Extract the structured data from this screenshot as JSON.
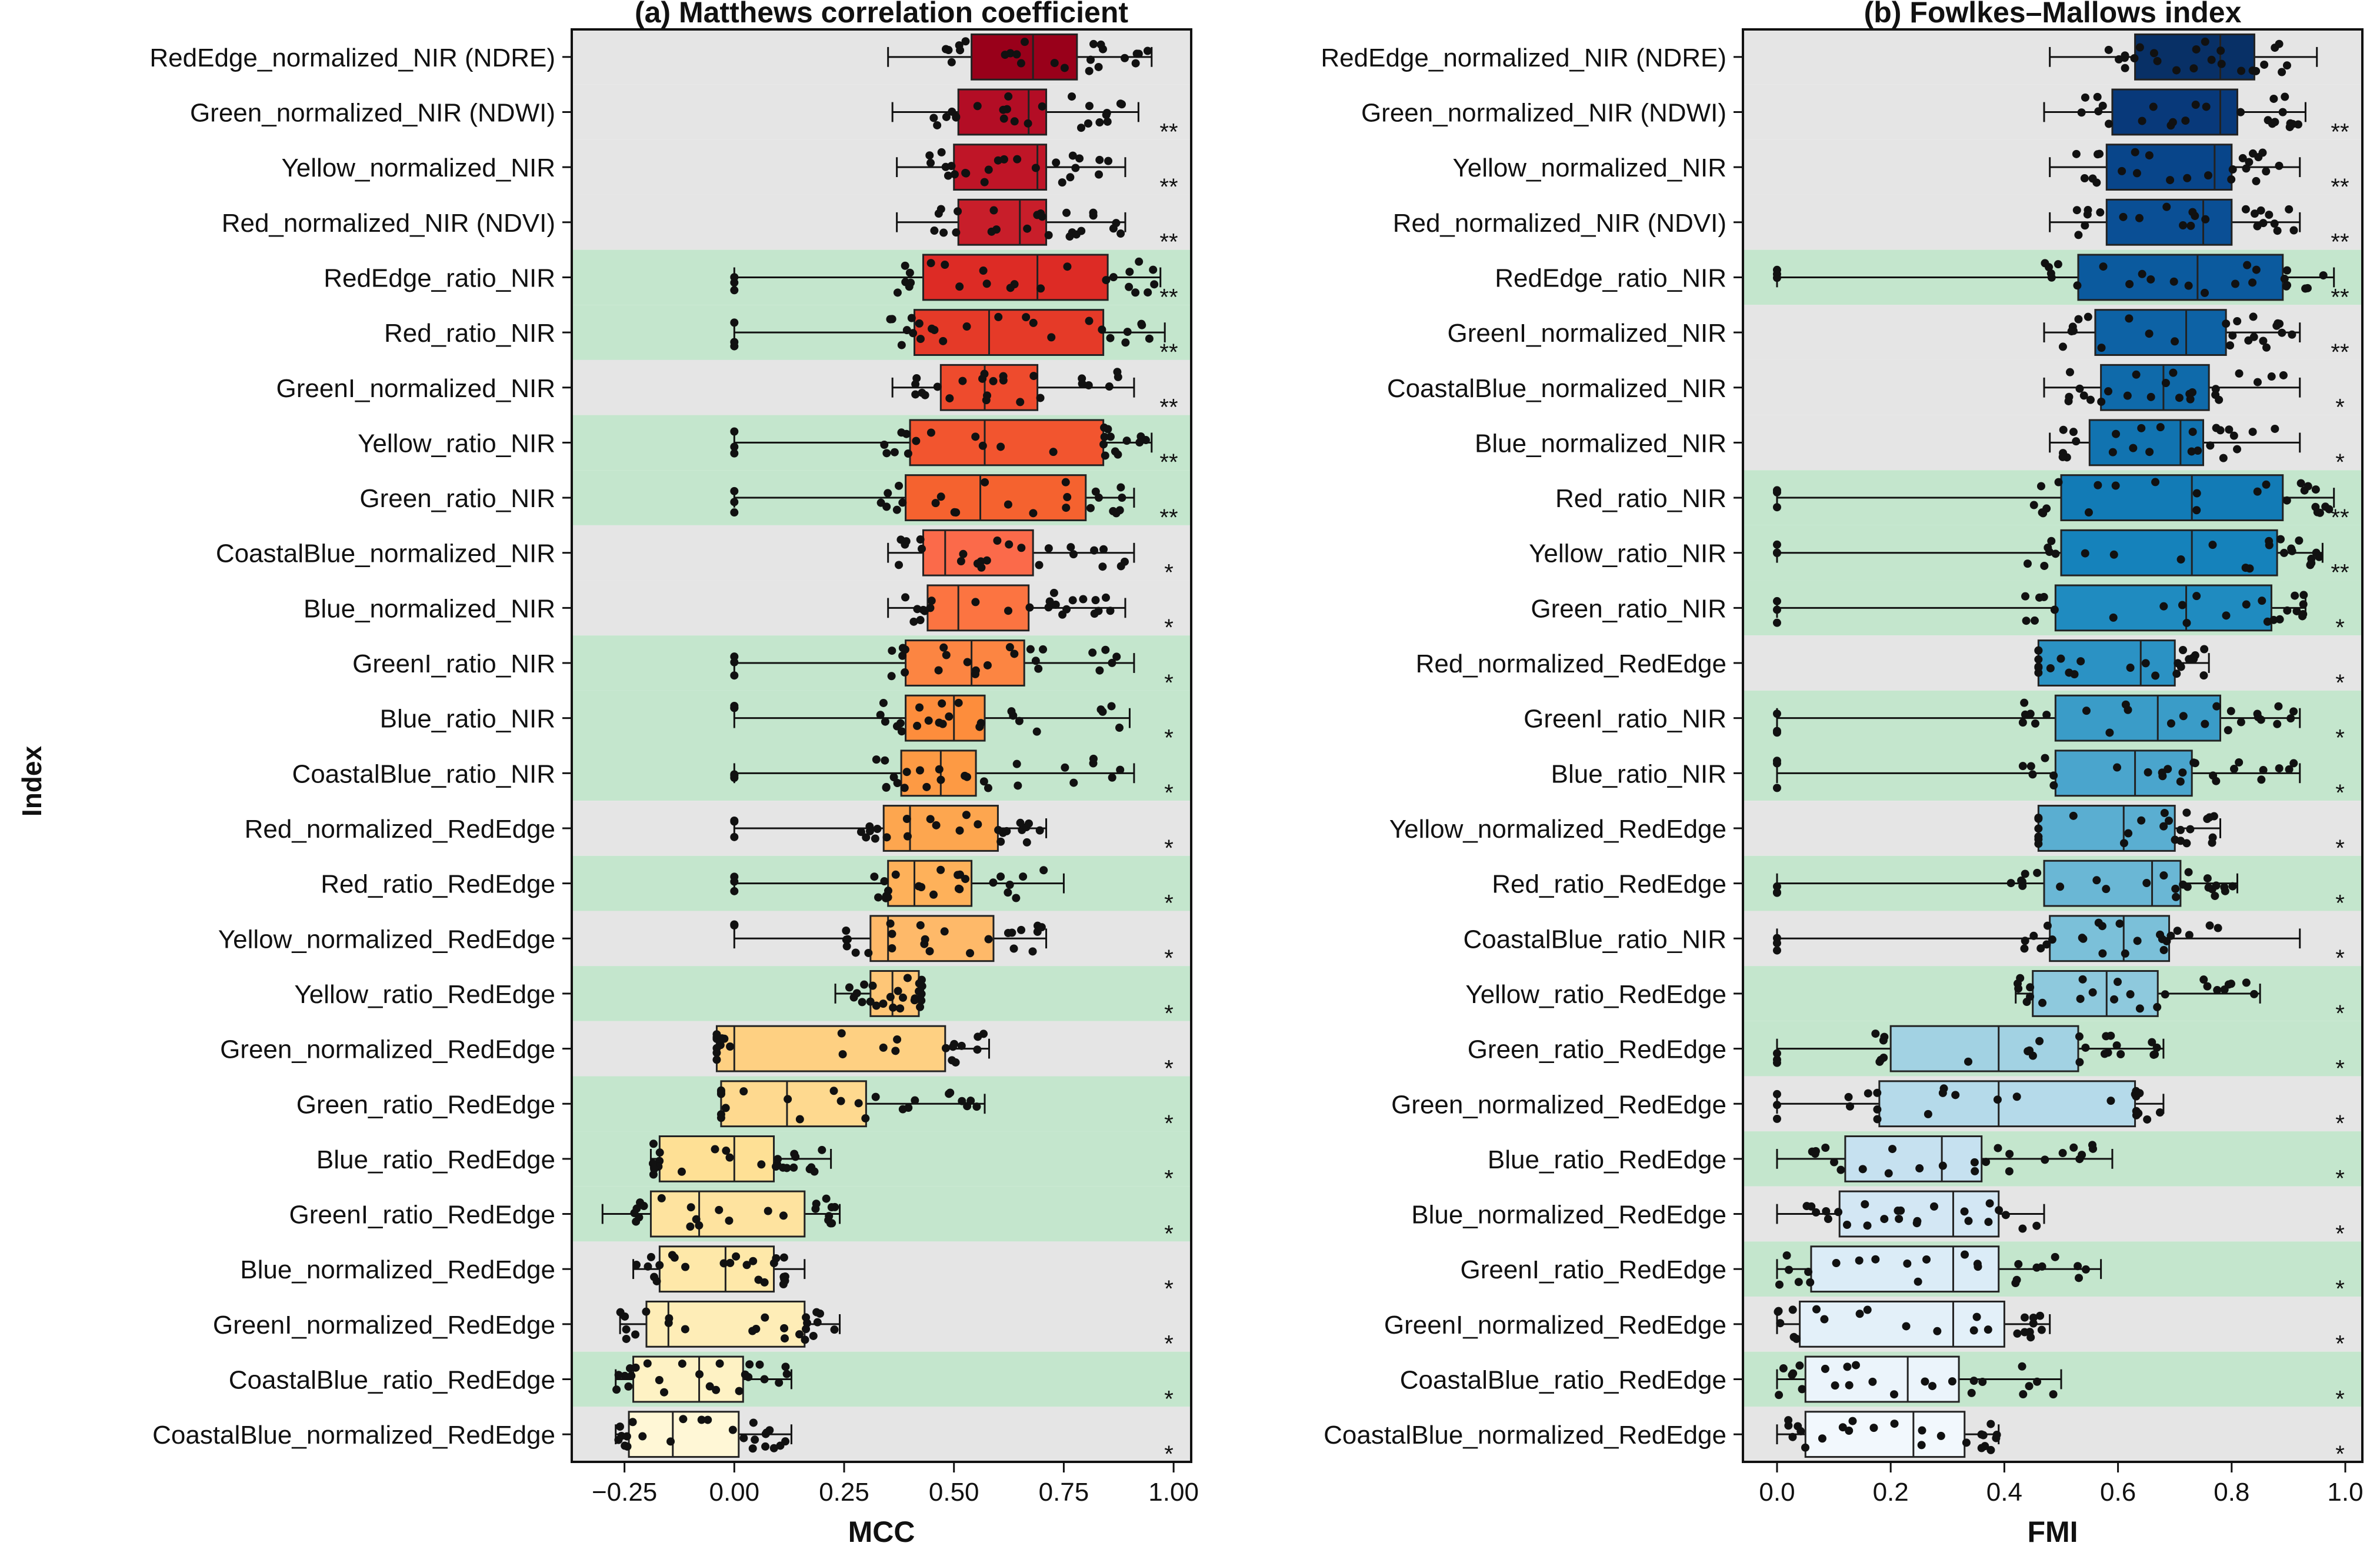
{
  "chart_data": [
    {
      "type": "boxplot",
      "panel": "a",
      "title": "(a) Matthews correlation coefficient",
      "xlabel": "MCC",
      "ylabel": "Index",
      "xlim": [
        -0.37,
        1.04
      ],
      "xticks": [
        -0.25,
        0.0,
        0.25,
        0.5,
        0.75,
        1.0
      ],
      "xtick_labels": [
        "−0.25",
        "0.00",
        "0.25",
        "0.50",
        "0.75",
        "1.00"
      ],
      "colors": [
        "#99001a",
        "#b30d25",
        "#bf1527",
        "#c81e2a",
        "#dd2b25",
        "#e53a28",
        "#ee4b2d",
        "#f2552f",
        "#f5622f",
        "#fb6a4a",
        "#fc7441",
        "#fc8542",
        "#fd8d3c",
        "#fd9a44",
        "#fda64f",
        "#feb15a",
        "#feb969",
        "#fec677",
        "#fed082",
        "#fed98f",
        "#fee095",
        "#fee39f",
        "#fee8a9",
        "#feedb7",
        "#fef2c4",
        "#fff7d6"
      ],
      "rows": [
        {
          "label": "RedEdge_normalized_NIR (NDRE)",
          "shade": "gray",
          "sig": "",
          "min": 0.35,
          "q1": 0.54,
          "median": 0.68,
          "q3": 0.78,
          "max": 0.95
        },
        {
          "label": "Green_normalized_NIR (NDWI)",
          "shade": "gray",
          "sig": "**",
          "min": 0.36,
          "q1": 0.51,
          "median": 0.67,
          "q3": 0.71,
          "max": 0.92
        },
        {
          "label": "Yellow_normalized_NIR",
          "shade": "gray",
          "sig": "**",
          "min": 0.37,
          "q1": 0.5,
          "median": 0.69,
          "q3": 0.71,
          "max": 0.89
        },
        {
          "label": "Red_normalized_NIR (NDVI)",
          "shade": "gray",
          "sig": "**",
          "min": 0.37,
          "q1": 0.51,
          "median": 0.65,
          "q3": 0.71,
          "max": 0.89
        },
        {
          "label": "RedEdge_ratio_NIR",
          "shade": "green",
          "sig": "**",
          "min": 0.0,
          "q1": 0.43,
          "median": 0.69,
          "q3": 0.85,
          "max": 0.97
        },
        {
          "label": "Red_ratio_NIR",
          "shade": "green",
          "sig": "**",
          "min": 0.0,
          "q1": 0.41,
          "median": 0.58,
          "q3": 0.84,
          "max": 0.98
        },
        {
          "label": "GreenI_normalized_NIR",
          "shade": "gray",
          "sig": "**",
          "min": 0.36,
          "q1": 0.47,
          "median": 0.57,
          "q3": 0.69,
          "max": 0.91
        },
        {
          "label": "Yellow_ratio_NIR",
          "shade": "green",
          "sig": "**",
          "min": 0.0,
          "q1": 0.4,
          "median": 0.57,
          "q3": 0.84,
          "max": 0.95
        },
        {
          "label": "Green_ratio_NIR",
          "shade": "green",
          "sig": "**",
          "min": 0.0,
          "q1": 0.39,
          "median": 0.56,
          "q3": 0.8,
          "max": 0.91
        },
        {
          "label": "CoastalBlue_normalized_NIR",
          "shade": "gray",
          "sig": "*",
          "min": 0.35,
          "q1": 0.43,
          "median": 0.48,
          "q3": 0.68,
          "max": 0.91
        },
        {
          "label": "Blue_normalized_NIR",
          "shade": "gray",
          "sig": "*",
          "min": 0.35,
          "q1": 0.44,
          "median": 0.51,
          "q3": 0.67,
          "max": 0.89
        },
        {
          "label": "GreenI_ratio_NIR",
          "shade": "green",
          "sig": "*",
          "min": 0.0,
          "q1": 0.39,
          "median": 0.54,
          "q3": 0.66,
          "max": 0.91
        },
        {
          "label": "Blue_ratio_NIR",
          "shade": "green",
          "sig": "*",
          "min": 0.0,
          "q1": 0.39,
          "median": 0.5,
          "q3": 0.57,
          "max": 0.9
        },
        {
          "label": "CoastalBlue_ratio_NIR",
          "shade": "green",
          "sig": "*",
          "min": 0.0,
          "q1": 0.38,
          "median": 0.47,
          "q3": 0.55,
          "max": 0.91
        },
        {
          "label": "Red_normalized_RedEdge",
          "shade": "gray",
          "sig": "*",
          "min": 0.0,
          "q1": 0.34,
          "median": 0.4,
          "q3": 0.6,
          "max": 0.71
        },
        {
          "label": "Red_ratio_RedEdge",
          "shade": "green",
          "sig": "*",
          "min": 0.0,
          "q1": 0.35,
          "median": 0.41,
          "q3": 0.54,
          "max": 0.75
        },
        {
          "label": "Yellow_normalized_RedEdge",
          "shade": "gray",
          "sig": "*",
          "min": 0.0,
          "q1": 0.31,
          "median": 0.35,
          "q3": 0.59,
          "max": 0.71
        },
        {
          "label": "Yellow_ratio_RedEdge",
          "shade": "green",
          "sig": "*",
          "min": 0.23,
          "q1": 0.31,
          "median": 0.36,
          "q3": 0.42,
          "max": 0.43
        },
        {
          "label": "Green_normalized_RedEdge",
          "shade": "gray",
          "sig": "*",
          "min": -0.04,
          "q1": -0.04,
          "median": 0.0,
          "q3": 0.48,
          "max": 0.58
        },
        {
          "label": "Green_ratio_RedEdge",
          "shade": "green",
          "sig": "*",
          "min": -0.03,
          "q1": -0.03,
          "median": 0.12,
          "q3": 0.3,
          "max": 0.57
        },
        {
          "label": "Blue_ratio_RedEdge",
          "shade": "green",
          "sig": "*",
          "min": -0.19,
          "q1": -0.17,
          "median": 0.0,
          "q3": 0.09,
          "max": 0.22
        },
        {
          "label": "GreenI_ratio_RedEdge",
          "shade": "green",
          "sig": "*",
          "min": -0.3,
          "q1": -0.19,
          "median": -0.08,
          "q3": 0.16,
          "max": 0.24
        },
        {
          "label": "Blue_normalized_RedEdge",
          "shade": "gray",
          "sig": "*",
          "min": -0.23,
          "q1": -0.17,
          "median": -0.02,
          "q3": 0.09,
          "max": 0.16
        },
        {
          "label": "GreenI_normalized_RedEdge",
          "shade": "gray",
          "sig": "*",
          "min": -0.26,
          "q1": -0.2,
          "median": -0.15,
          "q3": 0.16,
          "max": 0.24
        },
        {
          "label": "CoastalBlue_ratio_RedEdge",
          "shade": "green",
          "sig": "*",
          "min": -0.27,
          "q1": -0.23,
          "median": -0.08,
          "q3": 0.02,
          "max": 0.13
        },
        {
          "label": "CoastalBlue_normalized_RedEdge",
          "shade": "gray",
          "sig": "*",
          "min": -0.27,
          "q1": -0.24,
          "median": -0.14,
          "q3": 0.01,
          "max": 0.13
        }
      ]
    },
    {
      "type": "boxplot",
      "panel": "b",
      "title": "(b) Fowlkes–Mallows index",
      "xlabel": "FMI",
      "ylabel": "",
      "xlim": [
        -0.06,
        1.03
      ],
      "xticks": [
        0.0,
        0.2,
        0.4,
        0.6,
        0.8,
        1.0
      ],
      "xtick_labels": [
        "0.0",
        "0.2",
        "0.4",
        "0.6",
        "0.8",
        "1.0"
      ],
      "colors": [
        "#083066",
        "#08397a",
        "#08458a",
        "#0a4f95",
        "#0b5a9e",
        "#0d62a5",
        "#0f6aaa",
        "#1173b0",
        "#127bb6",
        "#1582bb",
        "#1f8bc0",
        "#2b92c4",
        "#3a9cc8",
        "#4aa5cd",
        "#5aaed1",
        "#6ab7d5",
        "#7bc0d9",
        "#8ec9dd",
        "#a2d2e3",
        "#b5daea",
        "#c6e1f0",
        "#d3e7f4",
        "#dbecf7",
        "#e3f0f9",
        "#ebf4fb",
        "#f2f8fd"
      ],
      "rows": [
        {
          "label": "RedEdge_normalized_NIR (NDRE)",
          "shade": "gray",
          "sig": "",
          "min": 0.48,
          "q1": 0.63,
          "median": 0.78,
          "q3": 0.84,
          "max": 0.95
        },
        {
          "label": "Green_normalized_NIR (NDWI)",
          "shade": "gray",
          "sig": "**",
          "min": 0.47,
          "q1": 0.59,
          "median": 0.78,
          "q3": 0.81,
          "max": 0.93
        },
        {
          "label": "Yellow_normalized_NIR",
          "shade": "gray",
          "sig": "**",
          "min": 0.48,
          "q1": 0.58,
          "median": 0.77,
          "q3": 0.8,
          "max": 0.92
        },
        {
          "label": "Red_normalized_NIR (NDVI)",
          "shade": "gray",
          "sig": "**",
          "min": 0.48,
          "q1": 0.58,
          "median": 0.75,
          "q3": 0.8,
          "max": 0.92
        },
        {
          "label": "RedEdge_ratio_NIR",
          "shade": "green",
          "sig": "**",
          "min": 0.0,
          "q1": 0.53,
          "median": 0.74,
          "q3": 0.89,
          "max": 0.98
        },
        {
          "label": "GreenI_normalized_NIR",
          "shade": "gray",
          "sig": "**",
          "min": 0.47,
          "q1": 0.56,
          "median": 0.72,
          "q3": 0.79,
          "max": 0.92
        },
        {
          "label": "CoastalBlue_normalized_NIR",
          "shade": "gray",
          "sig": "*",
          "min": 0.47,
          "q1": 0.57,
          "median": 0.68,
          "q3": 0.76,
          "max": 0.92
        },
        {
          "label": "Blue_normalized_NIR",
          "shade": "gray",
          "sig": "*",
          "min": 0.48,
          "q1": 0.55,
          "median": 0.71,
          "q3": 0.75,
          "max": 0.92
        },
        {
          "label": "Red_ratio_NIR",
          "shade": "green",
          "sig": "**",
          "min": 0.0,
          "q1": 0.5,
          "median": 0.73,
          "q3": 0.89,
          "max": 0.98
        },
        {
          "label": "Yellow_ratio_NIR",
          "shade": "green",
          "sig": "**",
          "min": 0.0,
          "q1": 0.5,
          "median": 0.73,
          "q3": 0.88,
          "max": 0.96
        },
        {
          "label": "Green_ratio_NIR",
          "shade": "green",
          "sig": "*",
          "min": 0.0,
          "q1": 0.49,
          "median": 0.72,
          "q3": 0.87,
          "max": 0.93
        },
        {
          "label": "Red_normalized_RedEdge",
          "shade": "gray",
          "sig": "*",
          "min": 0.46,
          "q1": 0.46,
          "median": 0.64,
          "q3": 0.7,
          "max": 0.76
        },
        {
          "label": "GreenI_ratio_NIR",
          "shade": "green",
          "sig": "*",
          "min": 0.0,
          "q1": 0.49,
          "median": 0.67,
          "q3": 0.78,
          "max": 0.92
        },
        {
          "label": "Blue_ratio_NIR",
          "shade": "green",
          "sig": "*",
          "min": 0.0,
          "q1": 0.49,
          "median": 0.63,
          "q3": 0.73,
          "max": 0.92
        },
        {
          "label": "Yellow_normalized_RedEdge",
          "shade": "gray",
          "sig": "*",
          "min": 0.46,
          "q1": 0.46,
          "median": 0.61,
          "q3": 0.7,
          "max": 0.78
        },
        {
          "label": "Red_ratio_RedEdge",
          "shade": "green",
          "sig": "*",
          "min": 0.0,
          "q1": 0.47,
          "median": 0.66,
          "q3": 0.71,
          "max": 0.81
        },
        {
          "label": "CoastalBlue_ratio_NIR",
          "shade": "gray",
          "sig": "*",
          "min": 0.0,
          "q1": 0.48,
          "median": 0.61,
          "q3": 0.69,
          "max": 0.92
        },
        {
          "label": "Yellow_ratio_RedEdge",
          "shade": "green",
          "sig": "*",
          "min": 0.42,
          "q1": 0.45,
          "median": 0.58,
          "q3": 0.67,
          "max": 0.85
        },
        {
          "label": "Green_ratio_RedEdge",
          "shade": "green",
          "sig": "*",
          "min": 0.0,
          "q1": 0.2,
          "median": 0.39,
          "q3": 0.53,
          "max": 0.68
        },
        {
          "label": "Green_normalized_RedEdge",
          "shade": "gray",
          "sig": "*",
          "min": 0.0,
          "q1": 0.18,
          "median": 0.39,
          "q3": 0.63,
          "max": 0.68
        },
        {
          "label": "Blue_ratio_RedEdge",
          "shade": "green",
          "sig": "*",
          "min": 0.0,
          "q1": 0.12,
          "median": 0.29,
          "q3": 0.36,
          "max": 0.59
        },
        {
          "label": "Blue_normalized_RedEdge",
          "shade": "gray",
          "sig": "*",
          "min": 0.0,
          "q1": 0.11,
          "median": 0.31,
          "q3": 0.39,
          "max": 0.47
        },
        {
          "label": "GreenI_ratio_RedEdge",
          "shade": "green",
          "sig": "*",
          "min": 0.0,
          "q1": 0.06,
          "median": 0.31,
          "q3": 0.39,
          "max": 0.57
        },
        {
          "label": "GreenI_normalized_RedEdge",
          "shade": "gray",
          "sig": "*",
          "min": 0.0,
          "q1": 0.04,
          "median": 0.31,
          "q3": 0.4,
          "max": 0.48
        },
        {
          "label": "CoastalBlue_ratio_RedEdge",
          "shade": "green",
          "sig": "*",
          "min": 0.0,
          "q1": 0.05,
          "median": 0.23,
          "q3": 0.32,
          "max": 0.5
        },
        {
          "label": "CoastalBlue_normalized_RedEdge",
          "shade": "gray",
          "sig": "*",
          "min": 0.0,
          "q1": 0.05,
          "median": 0.24,
          "q3": 0.33,
          "max": 0.39
        }
      ]
    }
  ]
}
